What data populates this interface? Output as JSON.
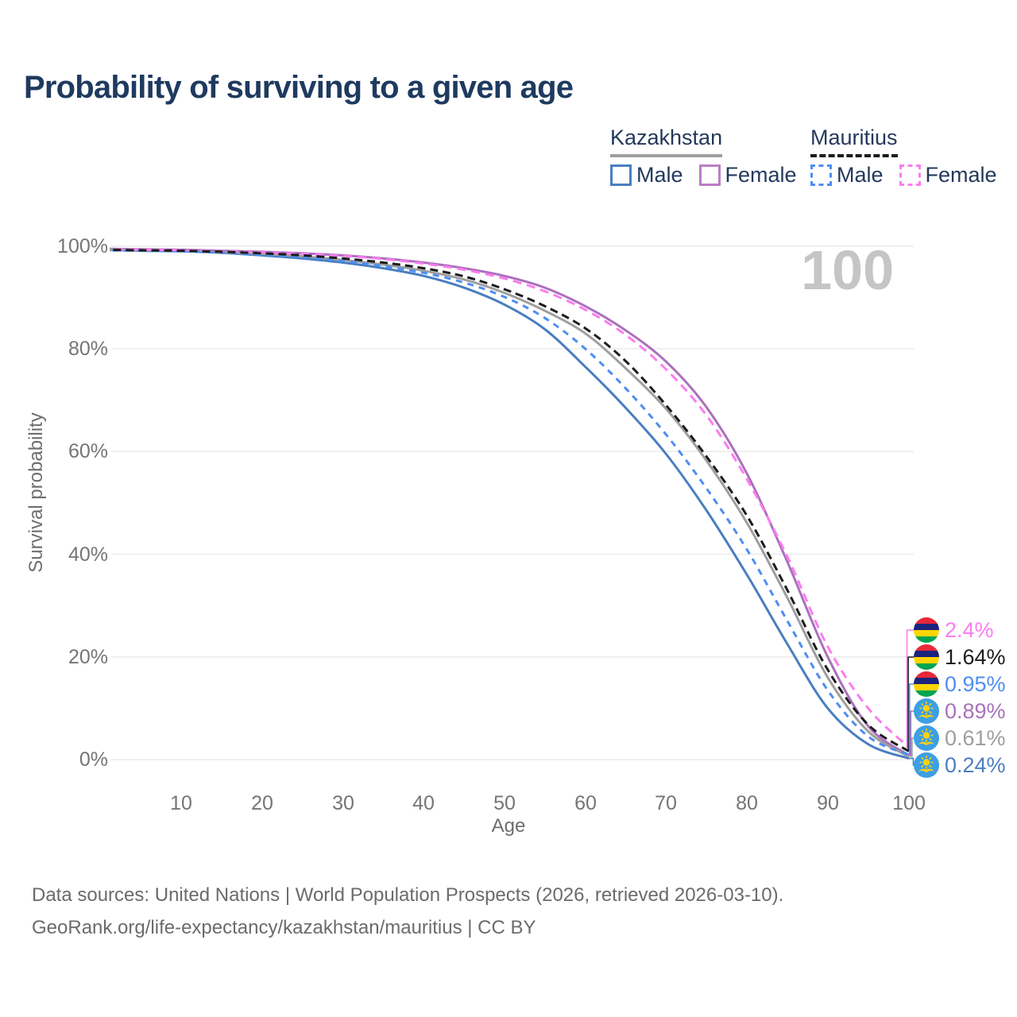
{
  "title": "Probability of surviving to a given age",
  "watermark": "100",
  "legend": {
    "groups": [
      {
        "label": "Kazakhstan",
        "line_color": "#9e9e9e",
        "line_style": "solid",
        "items": [
          {
            "label": "Male",
            "color": "#4a7ec0",
            "style": "solid"
          },
          {
            "label": "Female",
            "color": "#bb7ec6",
            "style": "solid"
          }
        ]
      },
      {
        "label": "Mauritius",
        "line_color": "#1c1c1c",
        "line_style": "dashed",
        "items": [
          {
            "label": "Male",
            "color": "#4d8ef2",
            "style": "dashed"
          },
          {
            "label": "Female",
            "color": "#fb7def",
            "style": "dashed"
          }
        ]
      }
    ]
  },
  "chart_data": {
    "type": "line",
    "title": "Probability of surviving to a given age",
    "xlabel": "Age",
    "ylabel": "Survival probability",
    "xlim": [
      0,
      100
    ],
    "ylim": [
      0,
      100
    ],
    "grid": "horizontal",
    "xticks": [
      10,
      20,
      30,
      40,
      50,
      60,
      70,
      80,
      90,
      100
    ],
    "yticks": [
      0,
      20,
      40,
      60,
      80,
      100
    ],
    "ytick_format": "percent",
    "x": [
      0,
      5,
      10,
      15,
      20,
      25,
      30,
      35,
      40,
      45,
      50,
      55,
      60,
      65,
      70,
      75,
      80,
      85,
      90,
      95,
      100
    ],
    "series": [
      {
        "name": "Kazakhstan Male",
        "color": "#4a7ec0",
        "dashed": false,
        "values": [
          99.3,
          99.1,
          99.0,
          98.7,
          98.2,
          97.6,
          96.8,
          95.7,
          94.2,
          91.9,
          88.6,
          83.8,
          76.5,
          68.5,
          59.5,
          48.5,
          36.0,
          22.5,
          10.0,
          3.0,
          0.24
        ],
        "end_label": "0.24%"
      },
      {
        "name": "Kazakhstan Female",
        "color": "#ab70bc",
        "dashed": false,
        "values": [
          99.5,
          99.4,
          99.3,
          99.1,
          98.9,
          98.6,
          98.2,
          97.6,
          96.8,
          95.7,
          94.2,
          91.9,
          88.3,
          83.6,
          77.5,
          68.6,
          55.7,
          38.5,
          20.0,
          6.5,
          0.89
        ],
        "end_label": "0.89%"
      },
      {
        "name": "Kazakhstan Total",
        "color": "#9e9e9e",
        "dashed": false,
        "values": [
          99.4,
          99.2,
          99.1,
          98.8,
          98.5,
          98.0,
          97.3,
          96.4,
          95.2,
          93.5,
          90.9,
          87.4,
          83.0,
          76.2,
          68.3,
          58.2,
          46.1,
          31.5,
          16.0,
          5.5,
          0.61
        ],
        "end_label": "0.61%"
      },
      {
        "name": "Mauritius Male",
        "color": "#4d8ef2",
        "dashed": true,
        "values": [
          99.2,
          99.1,
          99.0,
          98.7,
          98.3,
          97.8,
          97.1,
          96.1,
          94.8,
          92.9,
          90.1,
          86.0,
          80.0,
          72.3,
          63.3,
          52.8,
          40.9,
          27.0,
          13.5,
          4.5,
          0.95
        ],
        "end_label": "0.95%"
      },
      {
        "name": "Mauritius Female",
        "color": "#fb7def",
        "dashed": true,
        "values": [
          99.4,
          99.3,
          99.2,
          99.0,
          98.8,
          98.5,
          98.1,
          97.5,
          96.6,
          95.4,
          93.7,
          91.2,
          87.6,
          82.7,
          76.0,
          67.0,
          54.6,
          39.5,
          22.0,
          10.0,
          2.4
        ],
        "end_label": "2.4%"
      },
      {
        "name": "Mauritius Total",
        "color": "#1c1c1c",
        "dashed": true,
        "values": [
          99.3,
          99.2,
          99.1,
          98.9,
          98.6,
          98.2,
          97.6,
          96.8,
          95.7,
          94.1,
          91.6,
          88.3,
          84.0,
          77.6,
          69.0,
          59.0,
          47.5,
          33.0,
          17.5,
          6.8,
          1.64
        ],
        "end_label": "1.64%"
      }
    ],
    "end_labels": [
      {
        "value": "2.4%",
        "series": "Mauritius Female",
        "flag_icon": "mauritius-flag-icon"
      },
      {
        "value": "1.64%",
        "series": "Mauritius Total",
        "flag_icon": "mauritius-flag-icon"
      },
      {
        "value": "0.95%",
        "series": "Mauritius Male",
        "flag_icon": "mauritius-flag-icon"
      },
      {
        "value": "0.89%",
        "series": "Kazakhstan Female",
        "flag_icon": "kazakhstan-flag-icon"
      },
      {
        "value": "0.61%",
        "series": "Kazakhstan Total",
        "flag_icon": "kazakhstan-flag-icon"
      },
      {
        "value": "0.24%",
        "series": "Kazakhstan Male",
        "flag_icon": "kazakhstan-flag-icon"
      }
    ]
  },
  "footer": {
    "line1": "Data sources: United Nations | World Population Prospects (2026, retrieved 2026-03-10).",
    "line2": "GeoRank.org/life-expectancy/kazakhstan/mauritius | CC BY"
  }
}
